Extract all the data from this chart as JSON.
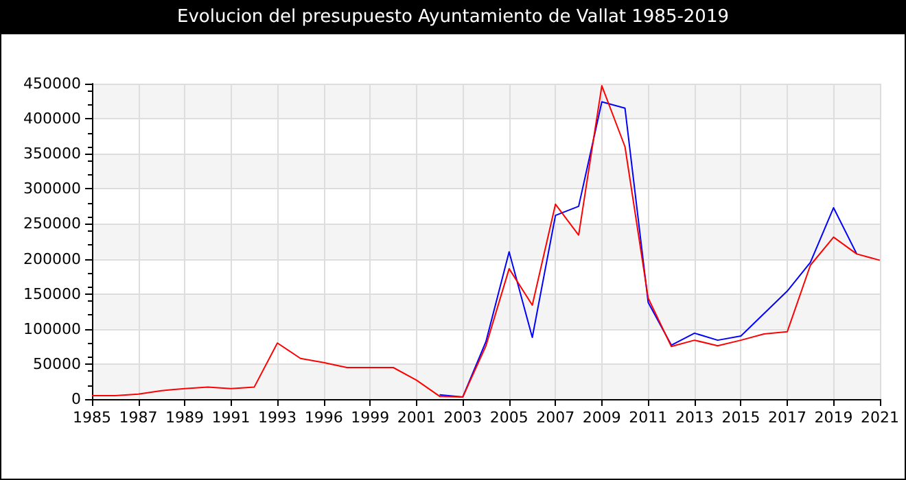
{
  "chart_data": {
    "type": "line",
    "title": "Evolucion del presupuesto Ayuntamiento de Vallat 1985-2019",
    "categories": [
      "1985",
      null,
      "1987",
      null,
      "1989",
      null,
      "1991",
      null,
      "1993",
      null,
      "1996",
      null,
      "1999",
      null,
      "2001",
      null,
      "2003",
      null,
      "2005",
      null,
      "2007",
      null,
      "2009",
      null,
      "2011",
      null,
      "2013",
      null,
      "2015",
      null,
      "2017",
      null,
      "2019",
      null,
      "2021"
    ],
    "series": [
      {
        "color": "#0000ff",
        "values": [
          null,
          null,
          null,
          null,
          null,
          null,
          null,
          null,
          null,
          null,
          null,
          null,
          null,
          null,
          null,
          6000,
          3000,
          82000,
          210000,
          88000,
          262000,
          275000,
          424000,
          415000,
          138000,
          77000,
          94000,
          84000,
          90000,
          122000,
          154000,
          195000,
          273000,
          207000,
          null
        ]
      },
      {
        "color": "#ff0000",
        "values": [
          5000,
          5000,
          7000,
          12000,
          15000,
          17000,
          15000,
          17000,
          80000,
          58000,
          52000,
          45000,
          45000,
          45000,
          27000,
          4000,
          3000,
          76000,
          186000,
          134000,
          278000,
          234000,
          447000,
          360000,
          144000,
          75000,
          84000,
          76000,
          84000,
          93000,
          96000,
          191000,
          231000,
          207000,
          198000
        ]
      }
    ],
    "ylim": [
      0,
      450000
    ],
    "yticks": [
      0,
      50000,
      100000,
      150000,
      200000,
      250000,
      300000,
      350000,
      400000,
      450000
    ],
    "grid": true,
    "marker": "none",
    "line_style": "solid"
  }
}
